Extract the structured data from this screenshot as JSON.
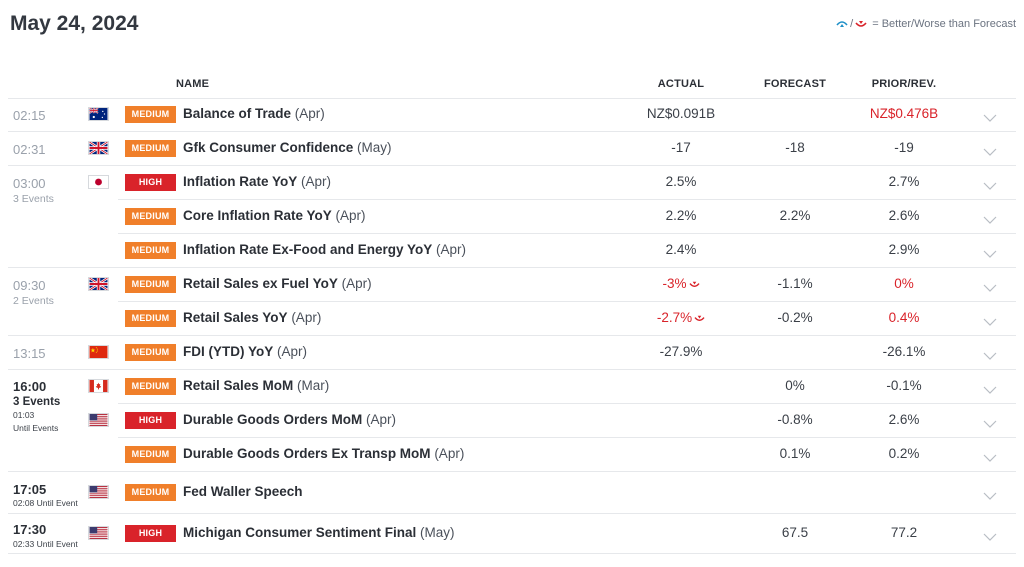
{
  "page_title": "May 24, 2024",
  "legend": {
    "text": "= Better/Worse than Forecast",
    "separator": "/",
    "better_icon": "better-arrow-icon",
    "worse_icon": "worse-arrow-icon"
  },
  "columns": {
    "name": "NAME",
    "actual": "ACTUAL",
    "forecast": "FORECAST",
    "prior": "PRIOR/REV."
  },
  "colors": {
    "medium": "#f07f2a",
    "high": "#d9232a",
    "worse": "#d9232a",
    "better": "#1d8fc7"
  },
  "groups": [
    {
      "time": "02:15",
      "events": "",
      "until": ""
    },
    {
      "time": "02:31",
      "events": "",
      "until": ""
    },
    {
      "time": "03:00",
      "events": "3 Events",
      "until": ""
    },
    {
      "time": "09:30",
      "events": "2 Events",
      "until": ""
    },
    {
      "time": "13:15",
      "events": "",
      "until": ""
    },
    {
      "time": "16:00",
      "events": "3 Events",
      "until": "01:03 Until Events"
    },
    {
      "time": "17:05",
      "events": "",
      "until": "02:08 Until Event"
    },
    {
      "time": "17:30",
      "events": "",
      "until": "02:33 Until Event"
    }
  ],
  "rows": [
    {
      "flag": "AU",
      "importance": "MEDIUM",
      "name": "Balance of Trade",
      "period": "(Apr)",
      "actual": "NZ$0.091B",
      "forecast": "",
      "prior": "NZ$0.476B"
    },
    {
      "flag": "GB",
      "importance": "MEDIUM",
      "name": "Gfk Consumer Confidence",
      "period": "(May)",
      "actual": "-17",
      "forecast": "-18",
      "prior": "-19"
    },
    {
      "flag": "JP",
      "importance": "HIGH",
      "name": "Inflation Rate YoY",
      "period": "(Apr)",
      "actual": "2.5%",
      "forecast": "",
      "prior": "2.7%"
    },
    {
      "flag": "",
      "importance": "MEDIUM",
      "name": "Core Inflation Rate YoY",
      "period": "(Apr)",
      "actual": "2.2%",
      "forecast": "2.2%",
      "prior": "2.6%"
    },
    {
      "flag": "",
      "importance": "MEDIUM",
      "name": "Inflation Rate Ex-Food and Energy YoY",
      "period": "(Apr)",
      "actual": "2.4%",
      "forecast": "",
      "prior": "2.9%"
    },
    {
      "flag": "GB",
      "importance": "MEDIUM",
      "name": "Retail Sales ex Fuel YoY",
      "period": "(Apr)",
      "actual": "-3%",
      "forecast": "-1.1%",
      "prior": "0%"
    },
    {
      "flag": "",
      "importance": "MEDIUM",
      "name": "Retail Sales YoY",
      "period": "(Apr)",
      "actual": "-2.7%",
      "forecast": "-0.2%",
      "prior": "0.4%"
    },
    {
      "flag": "CN",
      "importance": "MEDIUM",
      "name": "FDI (YTD) YoY",
      "period": "(Apr)",
      "actual": "-27.9%",
      "forecast": "",
      "prior": "-26.1%"
    },
    {
      "flag": "CA",
      "importance": "MEDIUM",
      "name": "Retail Sales MoM",
      "period": "(Mar)",
      "actual": "",
      "forecast": "0%",
      "prior": "-0.1%"
    },
    {
      "flag": "US",
      "importance": "HIGH",
      "name": "Durable Goods Orders MoM",
      "period": "(Apr)",
      "actual": "",
      "forecast": "-0.8%",
      "prior": "2.6%"
    },
    {
      "flag": "",
      "importance": "MEDIUM",
      "name": "Durable Goods Orders Ex Transp MoM",
      "period": "(Apr)",
      "actual": "",
      "forecast": "0.1%",
      "prior": "0.2%"
    },
    {
      "flag": "US",
      "importance": "MEDIUM",
      "name": "Fed Waller Speech",
      "period": "",
      "actual": "",
      "forecast": "",
      "prior": ""
    },
    {
      "flag": "US",
      "importance": "HIGH",
      "name": "Michigan Consumer Sentiment Final",
      "period": "(May)",
      "actual": "",
      "forecast": "67.5",
      "prior": "77.2"
    }
  ]
}
